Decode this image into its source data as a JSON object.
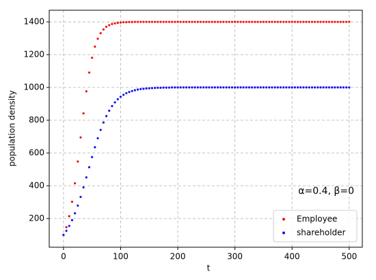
{
  "chart_data": {
    "type": "scatter",
    "x_label": "t",
    "y_label": "population density",
    "annotation": "α=0.4, β=0",
    "x": [
      0,
      5,
      10,
      15,
      20,
      25,
      30,
      35,
      40,
      45,
      50,
      55,
      60,
      65,
      70,
      75,
      80,
      85,
      90,
      95,
      100,
      105,
      110,
      115,
      120,
      125,
      130,
      135,
      140,
      145,
      150,
      155,
      160,
      165,
      170,
      175,
      180,
      185,
      190,
      195,
      200,
      205,
      210,
      215,
      220,
      225,
      230,
      235,
      240,
      245,
      250,
      255,
      260,
      265,
      270,
      275,
      280,
      285,
      290,
      295,
      300,
      305,
      310,
      315,
      320,
      325,
      330,
      335,
      340,
      345,
      350,
      355,
      360,
      365,
      370,
      375,
      380,
      385,
      390,
      395,
      400,
      405,
      410,
      415,
      420,
      425,
      430,
      435,
      440,
      445,
      450,
      455,
      460,
      465,
      470,
      475,
      480,
      485,
      490,
      495,
      500
    ],
    "series": [
      {
        "name": "Employee",
        "color": "#ee1111",
        "values": [
          100,
          147,
          214,
          302,
          415,
          548,
          695,
          842,
          976,
          1091,
          1181,
          1249,
          1297,
          1331,
          1354,
          1370,
          1380,
          1387,
          1391,
          1394,
          1396,
          1398,
          1398,
          1399,
          1399,
          1400,
          1400,
          1400,
          1400,
          1400,
          1400,
          1400,
          1400,
          1400,
          1400,
          1400,
          1400,
          1400,
          1400,
          1400,
          1400,
          1400,
          1400,
          1400,
          1400,
          1400,
          1400,
          1400,
          1400,
          1400,
          1400,
          1400,
          1400,
          1400,
          1400,
          1400,
          1400,
          1400,
          1400,
          1400,
          1400,
          1400,
          1400,
          1400,
          1400,
          1400,
          1400,
          1400,
          1400,
          1400,
          1400,
          1400,
          1400,
          1400,
          1400,
          1400,
          1400,
          1400,
          1400,
          1400,
          1400,
          1400,
          1400,
          1400,
          1400,
          1400,
          1400,
          1400,
          1400,
          1400,
          1400,
          1400,
          1400,
          1400,
          1400,
          1400,
          1400,
          1400,
          1400,
          1400,
          1400
        ]
      },
      {
        "name": "shareholder",
        "color": "#1111ee",
        "values": [
          100,
          125,
          155,
          190,
          232,
          279,
          332,
          390,
          451,
          513,
          575,
          635,
          690,
          741,
          786,
          825,
          858,
          886,
          909,
          928,
          943,
          955,
          965,
          972,
          978,
          983,
          987,
          990,
          992,
          994,
          995,
          996,
          997,
          998,
          998,
          999,
          999,
          999,
          1000,
          1000,
          1000,
          1000,
          1000,
          1000,
          1000,
          1000,
          1000,
          1000,
          1000,
          1000,
          1000,
          1000,
          1000,
          1000,
          1000,
          1000,
          1000,
          1000,
          1000,
          1000,
          1000,
          1000,
          1000,
          1000,
          1000,
          1000,
          1000,
          1000,
          1000,
          1000,
          1000,
          1000,
          1000,
          1000,
          1000,
          1000,
          1000,
          1000,
          1000,
          1000,
          1000,
          1000,
          1000,
          1000,
          1000,
          1000,
          1000,
          1000,
          1000,
          1000,
          1000,
          1000,
          1000,
          1000,
          1000,
          1000,
          1000,
          1000,
          1000,
          1000,
          1000
        ]
      }
    ],
    "xlim": [
      -25,
      523
    ],
    "ylim": [
      25,
      1471
    ],
    "xticks": [
      0,
      100,
      200,
      300,
      400,
      500
    ],
    "yticks": [
      200,
      400,
      600,
      800,
      1000,
      1200,
      1400
    ],
    "grid": true,
    "legend": "lower right"
  }
}
